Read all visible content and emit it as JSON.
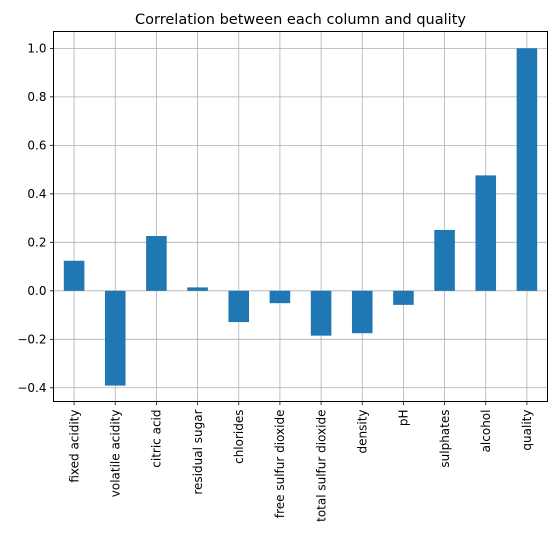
{
  "chart_data": {
    "type": "bar",
    "title": "Correlation between each column and quality",
    "xlabel": "",
    "ylabel": "",
    "categories": [
      "fixed acidity",
      "volatile acidity",
      "citric acid",
      "residual sugar",
      "chlorides",
      "free sulfur dioxide",
      "total sulfur dioxide",
      "density",
      "pH",
      "sulphates",
      "alcohol",
      "quality"
    ],
    "values": [
      0.124,
      -0.391,
      0.226,
      0.014,
      -0.129,
      -0.051,
      -0.185,
      -0.175,
      -0.058,
      0.251,
      0.476,
      1.0
    ],
    "ylim": [
      -0.4566,
      1.0696
    ],
    "yticks": [
      -0.4,
      -0.2,
      0.0,
      0.2,
      0.4,
      0.6,
      0.8,
      1.0
    ],
    "ytick_labels": [
      "−0.4",
      "−0.2",
      "0.0",
      "0.2",
      "0.4",
      "0.6",
      "0.8",
      "1.0"
    ],
    "grid": true,
    "bar_color": "#1f77b4",
    "grid_color": "#b0b0b0"
  }
}
